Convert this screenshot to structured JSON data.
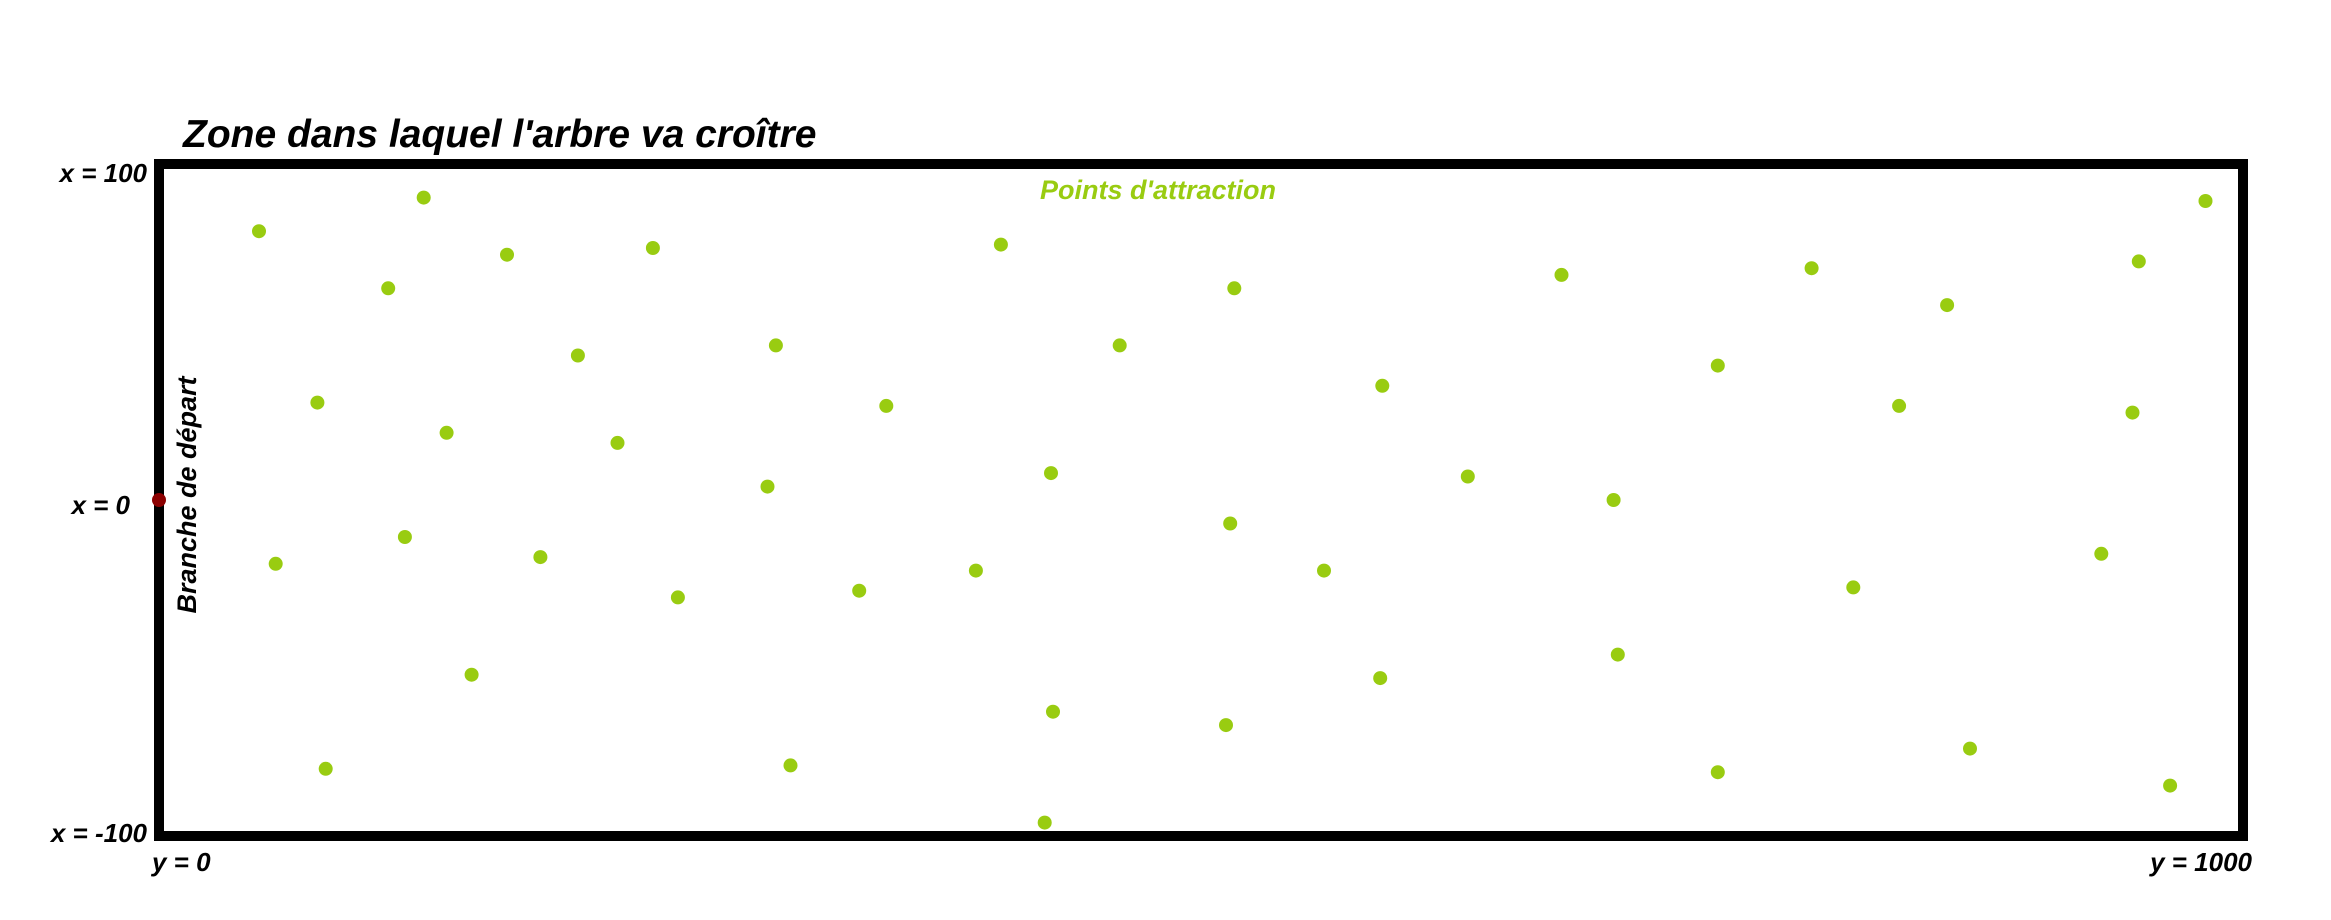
{
  "title": "Zone dans laquel l'arbre va croître",
  "axes": {
    "x_top_label": "x = 100",
    "x_middle_label": "x = 0",
    "x_bottom_label": "x = -100",
    "y_left_label": "y = 0",
    "y_right_label": "y = 1000"
  },
  "points_label": "Points d'attraction",
  "branch_label": "Branche de départ",
  "colors": {
    "frame": "#000000",
    "points": "#99cc11",
    "branch": "#8b0000",
    "text": "#000000"
  },
  "chart_data": {
    "type": "scatter",
    "title": "Zone dans laquel l'arbre va croître",
    "xlabel": "",
    "ylabel": "",
    "horizontal_axis": "y",
    "vertical_axis": "x",
    "y_range": [
      0,
      1000
    ],
    "x_range": [
      -100,
      100
    ],
    "grid": false,
    "start_branch": {
      "y": 0,
      "x": 0
    },
    "attraction_points": [
      {
        "y": 48,
        "x": 80
      },
      {
        "y": 127,
        "x": 90
      },
      {
        "y": 110,
        "x": 63
      },
      {
        "y": 167,
        "x": 73
      },
      {
        "y": 237,
        "x": 75
      },
      {
        "y": 201,
        "x": 43
      },
      {
        "y": 296,
        "x": 46
      },
      {
        "y": 404,
        "x": 76
      },
      {
        "y": 461,
        "x": 46
      },
      {
        "y": 516,
        "x": 63
      },
      {
        "y": 673,
        "x": 67
      },
      {
        "y": 793,
        "x": 69
      },
      {
        "y": 858,
        "x": 58
      },
      {
        "y": 950,
        "x": 71
      },
      {
        "y": 982,
        "x": 89
      },
      {
        "y": 76,
        "x": 29
      },
      {
        "y": 138,
        "x": 20
      },
      {
        "y": 220,
        "x": 17
      },
      {
        "y": 349,
        "x": 28
      },
      {
        "y": 292,
        "x": 4
      },
      {
        "y": 428,
        "x": 8
      },
      {
        "y": 587,
        "x": 34
      },
      {
        "y": 628,
        "x": 7
      },
      {
        "y": 748,
        "x": 40
      },
      {
        "y": 835,
        "x": 28
      },
      {
        "y": 947,
        "x": 26
      },
      {
        "y": 56,
        "x": -19
      },
      {
        "y": 118,
        "x": -11
      },
      {
        "y": 183,
        "x": -17
      },
      {
        "y": 249,
        "x": -29
      },
      {
        "y": 336,
        "x": -27
      },
      {
        "y": 392,
        "x": -21
      },
      {
        "y": 514,
        "x": -7
      },
      {
        "y": 559,
        "x": -21
      },
      {
        "y": 698,
        "x": 0
      },
      {
        "y": 813,
        "x": -26
      },
      {
        "y": 932,
        "x": -16
      },
      {
        "y": 150,
        "x": -52
      },
      {
        "y": 80,
        "x": -80
      },
      {
        "y": 303,
        "x": -79
      },
      {
        "y": 429,
        "x": -63
      },
      {
        "y": 512,
        "x": -67
      },
      {
        "y": 586,
        "x": -53
      },
      {
        "y": 700,
        "x": -46
      },
      {
        "y": 748,
        "x": -81
      },
      {
        "y": 869,
        "x": -74
      },
      {
        "y": 965,
        "x": -85
      },
      {
        "y": 425,
        "x": -96
      }
    ]
  }
}
